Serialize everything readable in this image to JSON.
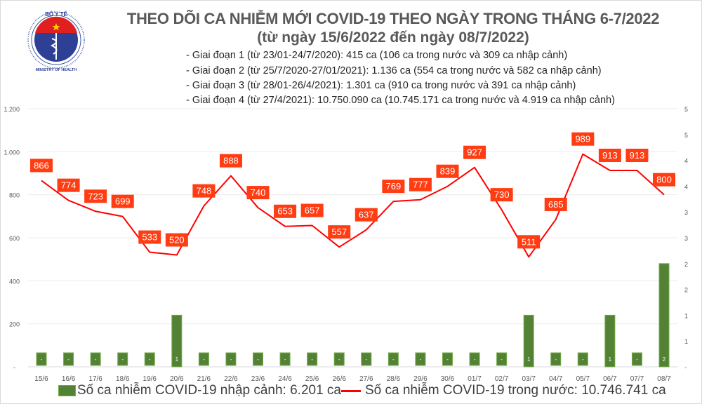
{
  "header": {
    "title": "THEO DÕI CA NHIỄM MỚI COVID-19 THEO NGÀY TRONG THÁNG 6-7/2022",
    "subtitle": "(từ ngày 15/6/2022 đến ngày 08/7/2022)",
    "phases": [
      "- Giai đoạn 1 (từ 23/01-24/7/2020): 415 ca (106 ca trong nước và 309 ca nhập cảnh)",
      "- Giai đoạn 2 (từ 25/7/2020-27/01/2021): 1.136 ca (554 ca trong nước và 582 ca nhập cảnh)",
      "- Giai đoạn 3 (từ 28/01-26/4/2021): 1.301 ca (910 ca trong nước và 391 ca nhập cảnh)",
      "- Giai đoạn 4 (từ 27/4/2021): 10.750.090 ca (10.745.171 ca trong nước và 4.919 ca nhập cảnh)"
    ]
  },
  "logo": {
    "text_top": "BỘ Y TẾ",
    "text_bottom": "MINISTRY OF HEALTH"
  },
  "chart_data": {
    "type": "bar+line",
    "categories": [
      "15/6",
      "16/6",
      "17/6",
      "18/6",
      "19/6",
      "20/6",
      "21/6",
      "22/6",
      "23/6",
      "24/6",
      "25/6",
      "26/6",
      "27/6",
      "28/6",
      "29/6",
      "30/6",
      "01/7",
      "02/7",
      "03/7",
      "04/7",
      "05/7",
      "06/7",
      "07/7",
      "08/7"
    ],
    "series": [
      {
        "name": "Số ca nhiễm COVID-19 nhập cảnh: 6.201 ca",
        "type": "bar",
        "axis": "right",
        "color": "#548235",
        "values": [
          0,
          0,
          0,
          0,
          0,
          1,
          0,
          0,
          0,
          0,
          0,
          0,
          0,
          0,
          0,
          0,
          0,
          0,
          1,
          0,
          0,
          1,
          0,
          2
        ]
      },
      {
        "name": "Số ca nhiễm COVID-19 trong nước: 10.746.741 ca",
        "type": "line",
        "axis": "left",
        "color": "#ff0000",
        "values": [
          866,
          774,
          723,
          699,
          533,
          520,
          748,
          888,
          740,
          653,
          657,
          557,
          637,
          769,
          777,
          839,
          927,
          730,
          511,
          685,
          989,
          913,
          913,
          800
        ]
      }
    ],
    "left_axis": {
      "ylim": [
        0,
        1200
      ],
      "ticks": [
        "-",
        "200",
        "400",
        "600",
        "800",
        "1.000",
        "1.200"
      ]
    },
    "right_axis": {
      "ylim": [
        0,
        5
      ],
      "ticks": [
        "-",
        "1",
        "1",
        "2",
        "2",
        "3",
        "3",
        "4",
        "4",
        "5",
        "5"
      ]
    },
    "grid": true,
    "legend": "bottom"
  }
}
